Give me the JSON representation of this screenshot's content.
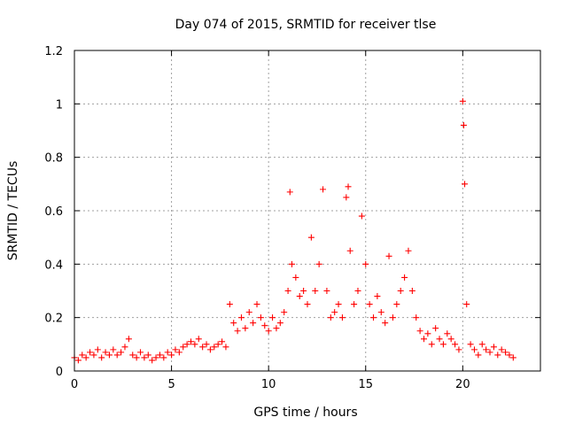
{
  "chart_data": {
    "type": "scatter",
    "title": "Day 074 of 2015, SRMTID for receiver tlse",
    "xlabel": "GPS time / hours",
    "ylabel": "SRMTID / TECUs",
    "xlim": [
      0,
      24
    ],
    "ylim": [
      0,
      1.2
    ],
    "xticks": [
      0,
      5,
      10,
      15,
      20
    ],
    "xtick_labels": [
      "0",
      "5",
      "10",
      "15",
      "20"
    ],
    "yticks": [
      0,
      0.2,
      0.4,
      0.6,
      0.8,
      1,
      1.2
    ],
    "ytick_labels": [
      "0",
      "0.2",
      "0.4",
      "0.6",
      "0.8",
      "1",
      "1.2"
    ],
    "grid": true,
    "marker": "+",
    "series": [
      {
        "name": "SRMTID",
        "color": "#ff0000",
        "x": [
          0.0,
          0.2,
          0.4,
          0.6,
          0.8,
          1.0,
          1.2,
          1.4,
          1.6,
          1.8,
          2.0,
          2.2,
          2.4,
          2.6,
          2.8,
          3.0,
          3.2,
          3.4,
          3.6,
          3.8,
          4.0,
          4.2,
          4.4,
          4.6,
          4.8,
          5.0,
          5.2,
          5.4,
          5.6,
          5.8,
          6.0,
          6.2,
          6.4,
          6.6,
          6.8,
          7.0,
          7.2,
          7.4,
          7.6,
          7.8,
          8.0,
          8.2,
          8.4,
          8.6,
          8.8,
          9.0,
          9.2,
          9.4,
          9.6,
          9.8,
          10.0,
          10.2,
          10.4,
          10.6,
          10.8,
          11.0,
          11.1,
          11.2,
          11.4,
          11.6,
          11.8,
          12.0,
          12.2,
          12.4,
          12.6,
          12.8,
          13.0,
          13.2,
          13.4,
          13.6,
          13.8,
          14.0,
          14.1,
          14.2,
          14.4,
          14.6,
          14.8,
          15.0,
          15.2,
          15.4,
          15.6,
          15.8,
          16.0,
          16.2,
          16.4,
          16.6,
          16.8,
          17.0,
          17.2,
          17.4,
          17.6,
          17.8,
          18.0,
          18.2,
          18.4,
          18.6,
          18.8,
          19.0,
          19.2,
          19.4,
          19.6,
          19.8,
          20.0,
          20.05,
          20.1,
          20.2,
          20.4,
          20.6,
          20.8,
          21.0,
          21.2,
          21.4,
          21.6,
          21.8,
          22.0,
          22.2,
          22.4,
          22.6
        ],
        "values": [
          0.05,
          0.04,
          0.06,
          0.05,
          0.07,
          0.06,
          0.08,
          0.05,
          0.07,
          0.06,
          0.08,
          0.06,
          0.07,
          0.09,
          0.12,
          0.06,
          0.05,
          0.07,
          0.05,
          0.06,
          0.04,
          0.05,
          0.06,
          0.05,
          0.07,
          0.06,
          0.08,
          0.07,
          0.09,
          0.1,
          0.11,
          0.1,
          0.12,
          0.09,
          0.1,
          0.08,
          0.09,
          0.1,
          0.11,
          0.09,
          0.25,
          0.18,
          0.15,
          0.2,
          0.16,
          0.22,
          0.18,
          0.25,
          0.2,
          0.17,
          0.15,
          0.2,
          0.16,
          0.18,
          0.22,
          0.3,
          0.67,
          0.4,
          0.35,
          0.28,
          0.3,
          0.25,
          0.5,
          0.3,
          0.4,
          0.68,
          0.3,
          0.2,
          0.22,
          0.25,
          0.2,
          0.65,
          0.69,
          0.45,
          0.25,
          0.3,
          0.58,
          0.4,
          0.25,
          0.2,
          0.28,
          0.22,
          0.18,
          0.43,
          0.2,
          0.25,
          0.3,
          0.35,
          0.45,
          0.3,
          0.2,
          0.15,
          0.12,
          0.14,
          0.1,
          0.16,
          0.12,
          0.1,
          0.14,
          0.12,
          0.1,
          0.08,
          1.01,
          0.92,
          0.7,
          0.25,
          0.1,
          0.08,
          0.06,
          0.1,
          0.08,
          0.07,
          0.09,
          0.06,
          0.08,
          0.07,
          0.06,
          0.05
        ]
      }
    ]
  }
}
